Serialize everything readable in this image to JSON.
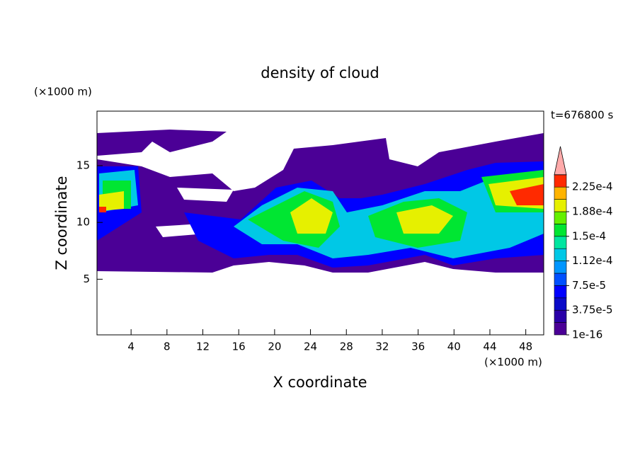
{
  "chart_data": {
    "type": "contour",
    "title": "density of cloud",
    "subtitle": "t=676800 s",
    "x_label": "X coordinate",
    "y_label": "Z coordinate",
    "x_unit": "(×1000 m)",
    "y_unit": "(×1000 m)",
    "xlim": [
      0.2,
      50
    ],
    "ylim": [
      0.1,
      19.8
    ],
    "xticks": [
      4,
      8,
      12,
      16,
      20,
      24,
      28,
      32,
      36,
      40,
      44,
      48
    ],
    "yticks": [
      5,
      10,
      15
    ],
    "colorbar": {
      "levels": [
        1e-16,
        1.875e-05,
        3.75e-05,
        5.625e-05,
        7.5e-05,
        9.375e-05,
        0.0001125,
        0.00013125,
        0.00015,
        0.00016875,
        0.0001875,
        0.00020625,
        0.000225,
        0.00024375
      ],
      "colors": [
        "#4b0096",
        "#2a00a8",
        "#0a0ac8",
        "#0000ff",
        "#0050ff",
        "#0096ff",
        "#00c8e6",
        "#00e6a0",
        "#00e632",
        "#64f000",
        "#e6f000",
        "#ffb400",
        "#ff2a00"
      ],
      "extend_color": "#ffaaaa",
      "ticks": [
        1e-16,
        {
          "value": 3.75e-05,
          "label": "3.75e-5"
        },
        {
          "value": 7.5e-05,
          "label": "7.5e-5"
        },
        {
          "value": 0.0001125,
          "label": "1.12e-4"
        },
        {
          "value": 0.00015,
          "label": "1.5e-4"
        },
        {
          "value": 0.0001875,
          "label": "1.88e-4"
        },
        {
          "value": 0.000225,
          "label": "2.25e-4"
        }
      ]
    }
  }
}
